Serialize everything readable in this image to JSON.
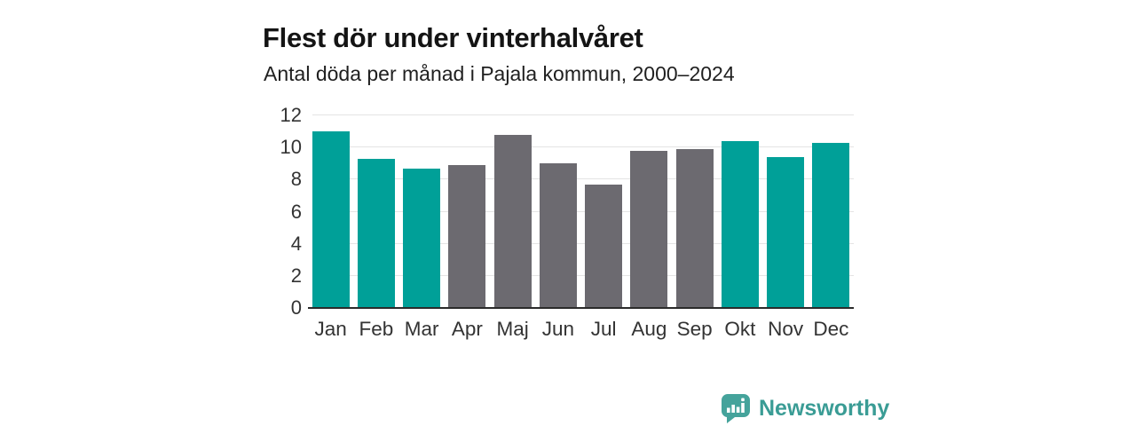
{
  "title": "Flest dör under vinterhalvåret",
  "subtitle": "Antal döda per månad i Pajala kommun, 2000–2024",
  "chart_data": {
    "type": "bar",
    "title": "Flest dör under vinterhalvåret",
    "subtitle": "Antal döda per månad i Pajala kommun, 2000–2024",
    "categories": [
      "Jan",
      "Feb",
      "Mar",
      "Apr",
      "Maj",
      "Jun",
      "Jul",
      "Aug",
      "Sep",
      "Okt",
      "Nov",
      "Dec"
    ],
    "values": [
      11.0,
      9.3,
      8.7,
      8.9,
      10.8,
      9.0,
      7.7,
      9.8,
      9.9,
      10.4,
      9.4,
      10.3
    ],
    "highlighted_categories": [
      "Jan",
      "Feb",
      "Mar",
      "Okt",
      "Nov",
      "Dec"
    ],
    "xlabel": "",
    "ylabel": "",
    "ylim": [
      0,
      12
    ],
    "yticks": [
      0,
      2,
      4,
      6,
      8,
      10,
      12
    ],
    "grid": "horizontal",
    "legend": "none",
    "colors": {
      "highlight": "#00a098",
      "base": "#6c6a70",
      "axis_line": "#2b2b2b",
      "gridline": "#e4e4e4",
      "tick_text": "#333333"
    }
  },
  "branding": {
    "logo_text": "Newsworthy",
    "logo_text_color": "#3a9c95",
    "logo_icon": "bar-chart-speech-bubble-icon",
    "logo_icon_color": "#45a39b"
  }
}
